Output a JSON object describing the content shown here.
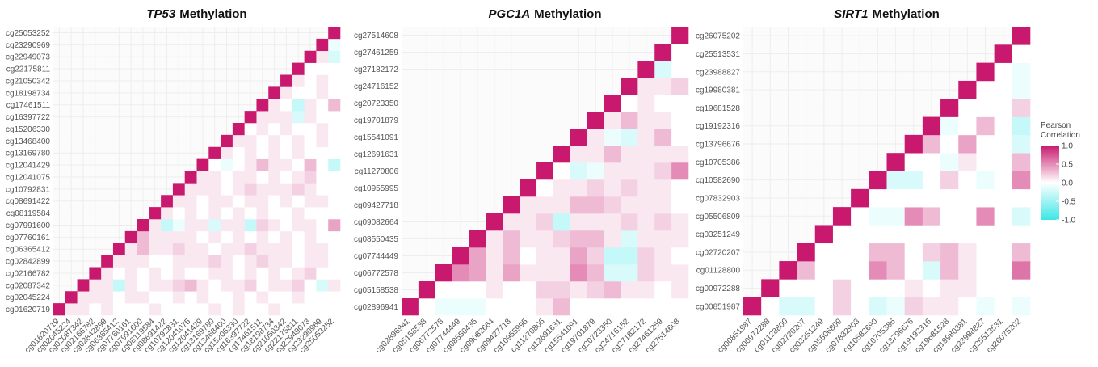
{
  "chart_data": [
    {
      "type": "heatmap",
      "title_italic": "TP53",
      "title": "Methylation",
      "categories": [
        "cg01620719",
        "cg02045224",
        "cg02087342",
        "cg02166782",
        "cg02842899",
        "cg06365412",
        "cg07760161",
        "cg07991600",
        "cg08119584",
        "cg08691422",
        "cg10792831",
        "cg12041075",
        "cg12041429",
        "cg13169780",
        "cg13468400",
        "cg15206330",
        "cg16397722",
        "cg17461511",
        "cg18198734",
        "cg21050342",
        "cg22175811",
        "cg22949073",
        "cg23290969",
        "cg25053252"
      ],
      "values": [
        [
          1,
          0.1,
          0.1,
          0,
          0.1,
          0,
          0,
          0,
          0.1,
          0,
          0,
          0,
          0,
          0.1,
          0,
          0.1,
          0,
          0,
          0.1,
          0,
          0,
          0,
          0,
          0
        ],
        [
          1,
          0.1,
          0.1,
          0.1,
          0,
          0.1,
          0.1,
          0,
          0,
          0.1,
          0,
          0.1,
          0,
          0,
          0.1,
          0,
          0.1,
          0,
          0,
          0.1,
          0,
          0,
          0
        ],
        [
          1,
          0.1,
          0.1,
          -0.3,
          0.1,
          0,
          0.1,
          0.1,
          0.2,
          0.3,
          0.1,
          0,
          0.1,
          0.1,
          0.2,
          0,
          0.1,
          0.1,
          0.2,
          0,
          -0.2,
          0.1
        ],
        [
          1,
          0.1,
          0,
          0.1,
          0,
          0.1,
          0,
          0.1,
          0,
          0,
          0.1,
          0.1,
          0,
          0.1,
          0,
          0.1,
          0,
          0.1,
          0.2,
          0,
          0
        ],
        [
          1,
          0.1,
          0.1,
          0.1,
          0,
          0,
          0.1,
          0.1,
          0.1,
          0.2,
          0.1,
          0,
          0.1,
          0.2,
          0.1,
          0.1,
          0,
          0.1,
          0.1,
          0
        ],
        [
          1,
          0.1,
          0.3,
          0.1,
          0.1,
          0.2,
          0.1,
          0.1,
          0,
          0.1,
          0.1,
          0.2,
          0.1,
          0.1,
          0.1,
          0,
          0.1,
          0.1,
          0
        ],
        [
          1,
          0.3,
          0.1,
          0.1,
          0.1,
          0.1,
          0,
          0.1,
          0,
          0.1,
          0,
          0.1,
          0,
          0.1,
          0,
          0.1,
          0,
          0
        ],
        [
          1,
          0.1,
          -0.3,
          -0.1,
          0.1,
          0.1,
          -0.2,
          0.1,
          0.1,
          -0.3,
          0.2,
          0.1,
          0,
          0.1,
          0.1,
          0,
          0.4
        ],
        [
          1,
          0.1,
          0,
          0.1,
          0,
          0.1,
          0,
          0.1,
          0,
          0.1,
          0,
          0,
          0.1,
          0,
          0,
          0
        ],
        [
          1,
          0.1,
          0.1,
          0,
          0.1,
          0.1,
          0,
          0.1,
          0.1,
          0,
          0.1,
          0,
          0.1,
          0.1,
          0
        ],
        [
          1,
          0.1,
          0.1,
          0.1,
          0,
          0.1,
          0.2,
          0.1,
          0.1,
          0.1,
          0.2,
          0.1,
          0,
          0
        ],
        [
          1,
          0.1,
          0.1,
          0,
          0.1,
          0.1,
          0,
          0.1,
          0,
          0.1,
          0.2,
          0,
          0
        ],
        [
          1,
          0,
          -0.1,
          0,
          0.1,
          0.3,
          0.1,
          0.1,
          0,
          0.3,
          0,
          -0.3
        ],
        [
          1,
          0.1,
          0,
          0.1,
          0,
          0.1,
          0,
          0.1,
          0,
          0,
          0
        ],
        [
          1,
          0.1,
          0.1,
          0,
          0.1,
          0,
          0.1,
          0,
          0.1,
          0
        ],
        [
          1,
          0,
          0.1,
          0,
          0.1,
          0,
          0,
          0.1,
          0
        ],
        [
          1,
          0.1,
          0.1,
          0.1,
          -0.2,
          0.1,
          0,
          0
        ],
        [
          1,
          0.1,
          0,
          -0.3,
          0.1,
          0,
          0.3
        ],
        [
          1,
          0.1,
          0,
          0,
          0.1,
          0
        ],
        [
          1,
          0.1,
          0,
          0.1,
          0
        ],
        [
          1,
          0,
          0,
          0
        ],
        [
          1,
          0.1,
          -0.2
        ],
        [
          1,
          -0.1
        ],
        [
          1
        ]
      ]
    },
    {
      "type": "heatmap",
      "title_italic": "PGC1A",
      "title": "Methylation",
      "categories": [
        "cg02896941",
        "cg05158538",
        "cg06772578",
        "cg07744449",
        "cg08550435",
        "cg09082664",
        "cg09427718",
        "cg10955995",
        "cg11270806",
        "cg12691631",
        "cg15541091",
        "cg19701879",
        "cg20723350",
        "cg24716152",
        "cg27182172",
        "cg27461259",
        "cg27514608"
      ],
      "values": [
        [
          1,
          0,
          -0.1,
          -0.1,
          -0.1,
          0,
          0,
          0,
          0.1,
          0.3,
          0,
          0,
          0,
          0,
          0,
          0,
          0
        ],
        [
          1,
          0,
          0,
          0,
          0.1,
          0,
          0,
          0.2,
          0.2,
          0.1,
          0.2,
          0.3,
          0.1,
          0.1,
          0,
          0.1
        ],
        [
          1,
          0.5,
          0.4,
          0.1,
          0.4,
          0.1,
          0.1,
          0.1,
          0.5,
          0.3,
          -0.2,
          -0.2,
          0.2,
          0.1,
          0.1
        ],
        [
          1,
          0.4,
          0.1,
          0.3,
          0,
          0.1,
          0.1,
          0.4,
          0.2,
          -0.3,
          -0.3,
          0.2,
          0.1,
          0
        ],
        [
          1,
          0.1,
          0.3,
          0.1,
          0.1,
          0.2,
          0.3,
          0.3,
          0.1,
          -0.2,
          0.1,
          0.1,
          0.1
        ],
        [
          1,
          0.1,
          0.1,
          0.2,
          -0.3,
          0.1,
          0.1,
          0.1,
          0.2,
          0.1,
          0.2,
          0.1
        ],
        [
          1,
          0.1,
          0.1,
          0.1,
          0.3,
          0.3,
          0.2,
          0.1,
          0.1,
          0.1,
          0
        ],
        [
          1,
          0,
          0.1,
          0.1,
          0.2,
          0.1,
          0.2,
          0.1,
          0.1,
          0
        ],
        [
          1,
          0,
          -0.2,
          -0.1,
          0.1,
          0.1,
          0.1,
          0.2,
          0.5
        ],
        [
          1,
          0.1,
          0.1,
          0.3,
          0.1,
          0.1,
          0.1,
          0.1
        ],
        [
          1,
          0.1,
          -0.1,
          -0.2,
          0.1,
          0.3,
          0
        ],
        [
          1,
          0.1,
          0.3,
          0.1,
          0.1,
          0
        ],
        [
          1,
          0,
          0.1,
          0,
          0
        ],
        [
          1,
          0.1,
          0.1,
          0.2
        ],
        [
          1,
          -0.2,
          0
        ],
        [
          1,
          0
        ],
        [
          1
        ]
      ]
    },
    {
      "type": "heatmap",
      "title_italic": "SIRT1",
      "title": "Methylation",
      "categories": [
        "cg00851987",
        "cg00972288",
        "cg01128800",
        "cg02720207",
        "cg03251249",
        "cg05506809",
        "cg07832903",
        "cg10582690",
        "cg10705386",
        "cg13796676",
        "cg19192316",
        "cg19681528",
        "cg19980381",
        "cg23988827",
        "cg25513531",
        "cg26075202"
      ],
      "values": [
        [
          1,
          0,
          -0.2,
          -0.2,
          0,
          0.2,
          0,
          -0.2,
          -0.1,
          0.2,
          0.1,
          0.1,
          0,
          -0.1,
          0,
          -0.1
        ],
        [
          1,
          0,
          0,
          0,
          0.2,
          0,
          0,
          0,
          0.1,
          0,
          0.1,
          0.1,
          0,
          0,
          0
        ],
        [
          1,
          0.3,
          0,
          0,
          0,
          0.5,
          0.3,
          0,
          -0.2,
          0.3,
          0.1,
          0,
          0,
          0.6
        ],
        [
          1,
          0,
          0,
          0,
          0.3,
          0.3,
          0,
          0.2,
          0.3,
          0.1,
          0,
          0,
          0.3
        ],
        [
          1,
          0,
          0,
          0,
          0,
          0,
          0,
          0,
          0,
          0,
          0,
          0
        ],
        [
          1,
          0,
          -0.1,
          -0.1,
          0.5,
          0.3,
          0,
          0,
          0.5,
          0,
          -0.2
        ],
        [
          1,
          0,
          0,
          0,
          0,
          0,
          0,
          0,
          0,
          0
        ],
        [
          1,
          -0.2,
          -0.2,
          0,
          0.2,
          0,
          -0.1,
          0,
          0.5
        ],
        [
          1,
          0,
          0,
          -0.1,
          0.1,
          0,
          0,
          0.3
        ],
        [
          1,
          0.3,
          0,
          0.4,
          0,
          0,
          -0.2
        ],
        [
          1,
          -0.1,
          0,
          0.3,
          0,
          -0.3
        ],
        [
          1,
          0,
          0,
          0,
          0.2
        ],
        [
          1,
          0,
          0,
          -0.1
        ],
        [
          1,
          0,
          -0.1
        ],
        [
          1,
          0
        ],
        [
          1
        ]
      ],
      "colorbar": {
        "title": [
          "Pearson",
          "Correlation"
        ],
        "lim": [
          -1,
          1
        ],
        "ticks": [
          {
            "value": 1,
            "label": "1.0"
          },
          {
            "value": 0.5,
            "label": "0.5"
          },
          {
            "value": 0,
            "label": "0.0"
          },
          {
            "value": -0.5,
            "label": "-0.5"
          },
          {
            "value": -1,
            "label": "-1.0"
          }
        ],
        "colors": {
          "low": "#3ee6e6",
          "mid": "#ffffff",
          "high": "#c8196e"
        }
      }
    }
  ]
}
